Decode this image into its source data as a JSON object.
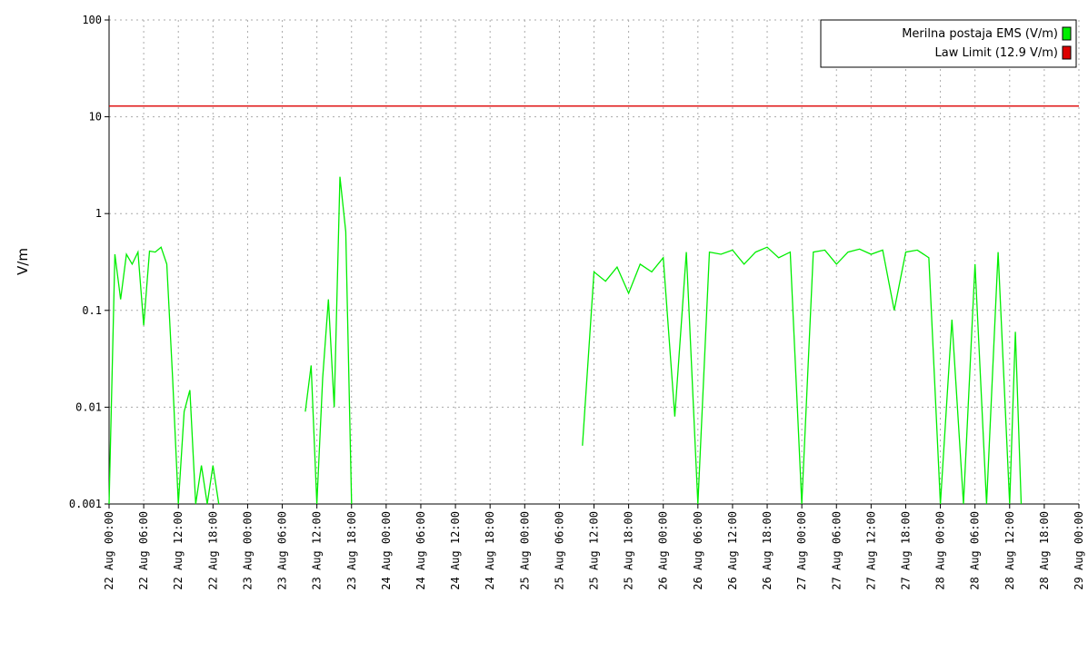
{
  "chart_data": {
    "type": "line",
    "ylabel": "V/m",
    "log_scale": true,
    "grid": true,
    "legend": "upper right",
    "ylim": [
      0.001,
      100
    ],
    "yticks": [
      0.001,
      0.01,
      0.1,
      1,
      10,
      100
    ],
    "xlim": [
      "22 Aug 00:00",
      "29 Aug 00:00"
    ],
    "xticks": [
      "22 Aug 00:00",
      "22 Aug 06:00",
      "22 Aug 12:00",
      "22 Aug 18:00",
      "23 Aug 00:00",
      "23 Aug 06:00",
      "23 Aug 12:00",
      "23 Aug 18:00",
      "24 Aug 00:00",
      "24 Aug 06:00",
      "24 Aug 12:00",
      "24 Aug 18:00",
      "25 Aug 00:00",
      "25 Aug 06:00",
      "25 Aug 12:00",
      "25 Aug 18:00",
      "26 Aug 00:00",
      "26 Aug 06:00",
      "26 Aug 12:00",
      "26 Aug 18:00",
      "27 Aug 00:00",
      "27 Aug 06:00",
      "27 Aug 12:00",
      "27 Aug 18:00",
      "28 Aug 00:00",
      "28 Aug 06:00",
      "28 Aug 12:00",
      "28 Aug 18:00",
      "29 Aug 00:00"
    ],
    "series": [
      {
        "name": "Merilna postaja EMS (V/m)",
        "color": "#00ee00",
        "x": [
          "22 Aug 00:00",
          "22 Aug 01:00",
          "22 Aug 02:00",
          "22 Aug 03:00",
          "22 Aug 04:00",
          "22 Aug 05:00",
          "22 Aug 06:00",
          "22 Aug 07:00",
          "22 Aug 08:00",
          "22 Aug 09:00",
          "22 Aug 10:00",
          "22 Aug 11:00",
          "22 Aug 12:00",
          "22 Aug 13:00",
          "22 Aug 14:00",
          "22 Aug 15:00",
          "22 Aug 16:00",
          "22 Aug 17:00",
          "22 Aug 18:00",
          "22 Aug 19:00",
          "22 Aug 20:00",
          "23 Aug 10:00",
          "23 Aug 11:00",
          "23 Aug 12:00",
          "23 Aug 13:00",
          "23 Aug 14:00",
          "23 Aug 15:00",
          "23 Aug 16:00",
          "23 Aug 17:00",
          "23 Aug 18:00",
          "23 Aug 19:00",
          "25 Aug 10:00",
          "25 Aug 12:00",
          "25 Aug 14:00",
          "25 Aug 16:00",
          "25 Aug 18:00",
          "25 Aug 20:00",
          "25 Aug 22:00",
          "26 Aug 00:00",
          "26 Aug 02:00",
          "26 Aug 04:00",
          "26 Aug 06:00",
          "26 Aug 08:00",
          "26 Aug 10:00",
          "26 Aug 12:00",
          "26 Aug 14:00",
          "26 Aug 16:00",
          "26 Aug 18:00",
          "26 Aug 20:00",
          "26 Aug 22:00",
          "27 Aug 00:00",
          "27 Aug 02:00",
          "27 Aug 04:00",
          "27 Aug 06:00",
          "27 Aug 08:00",
          "27 Aug 10:00",
          "27 Aug 12:00",
          "27 Aug 14:00",
          "27 Aug 16:00",
          "27 Aug 18:00",
          "27 Aug 20:00",
          "27 Aug 22:00",
          "28 Aug 00:00",
          "28 Aug 02:00",
          "28 Aug 04:00",
          "28 Aug 06:00",
          "28 Aug 08:00",
          "28 Aug 10:00",
          "28 Aug 12:00",
          "28 Aug 13:00",
          "28 Aug 14:00"
        ],
        "values": [
          0.001,
          0.38,
          0.13,
          0.38,
          0.3,
          0.4,
          0.07,
          0.41,
          0.4,
          0.45,
          0.3,
          0.02,
          0.001,
          0.009,
          0.015,
          0.001,
          0.0025,
          0.001,
          0.0025,
          0.001,
          null,
          0.009,
          0.027,
          0.001,
          0.02,
          0.13,
          0.01,
          2.4,
          0.65,
          0.001,
          null,
          0.004,
          0.25,
          0.2,
          0.28,
          0.15,
          0.3,
          0.25,
          0.35,
          0.008,
          0.4,
          0.001,
          0.4,
          0.38,
          0.42,
          0.3,
          0.4,
          0.45,
          0.35,
          0.4,
          0.001,
          0.4,
          0.42,
          0.3,
          0.4,
          0.43,
          0.38,
          0.42,
          0.1,
          0.4,
          0.42,
          0.35,
          0.001,
          0.08,
          0.001,
          0.3,
          0.001,
          0.4,
          0.001,
          0.06,
          0.001
        ]
      },
      {
        "name": "Law Limit (12.9 V/m)",
        "color": "#dd0000",
        "x": [
          "22 Aug 00:00",
          "29 Aug 00:00"
        ],
        "values": [
          12.9,
          12.9
        ]
      }
    ]
  }
}
